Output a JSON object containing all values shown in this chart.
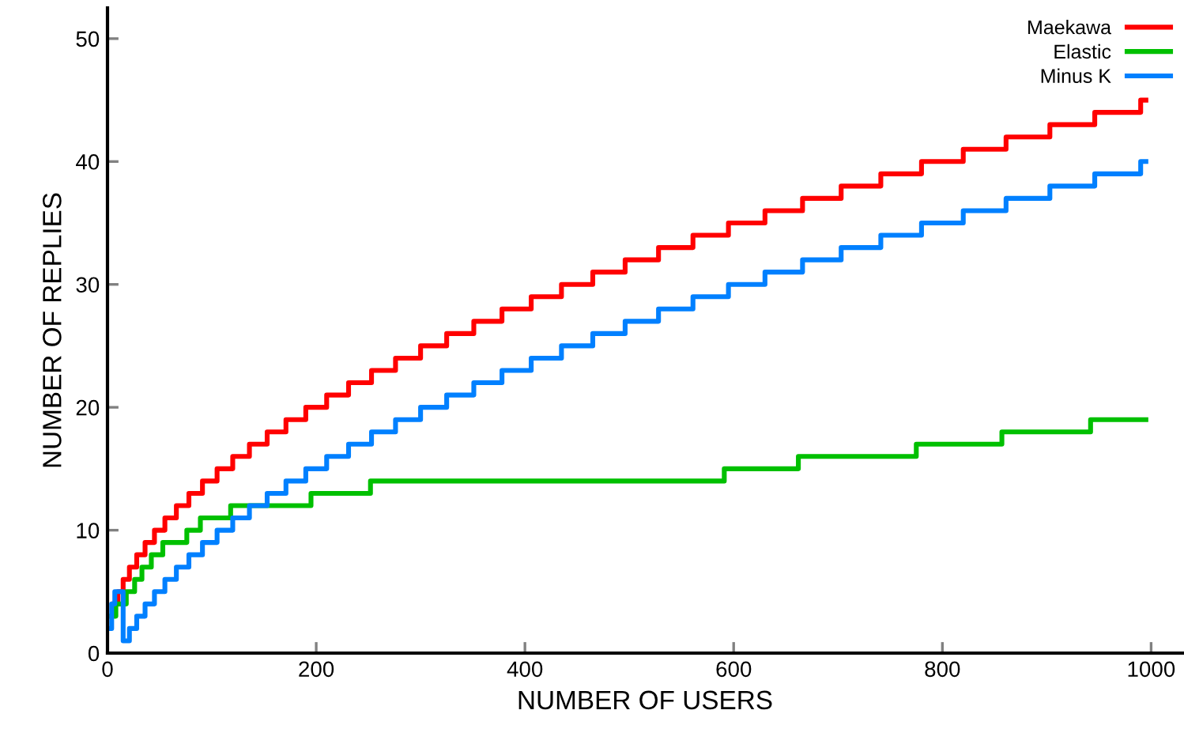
{
  "chart_data": {
    "type": "step",
    "xlabel": "NUMBER OF USERS",
    "ylabel": "NUMBER OF REPLIES",
    "xlim": [
      0,
      1030
    ],
    "ylim": [
      0,
      52.5
    ],
    "xticks": [
      0,
      200,
      400,
      600,
      800,
      1000
    ],
    "yticks": [
      0,
      10,
      20,
      30,
      40,
      50
    ],
    "grid": false,
    "legend": "top right",
    "line_style": "solid",
    "marker": "none",
    "series": [
      {
        "name": "Maekawa",
        "color": "#ff0000",
        "x": [
          6,
          10,
          15,
          21,
          28,
          36,
          45,
          55,
          66,
          78,
          91,
          105,
          120,
          136,
          153,
          171,
          190,
          210,
          231,
          253,
          276,
          300,
          325,
          351,
          378,
          406,
          435,
          465,
          496,
          528,
          561,
          595,
          630,
          666,
          703,
          741,
          780,
          820,
          861,
          903,
          946,
          990,
          995
        ],
        "values": [
          4,
          5,
          6,
          7,
          8,
          9,
          10,
          11,
          12,
          13,
          14,
          15,
          16,
          17,
          18,
          19,
          20,
          21,
          22,
          23,
          24,
          25,
          26,
          27,
          28,
          29,
          30,
          31,
          32,
          33,
          34,
          35,
          36,
          37,
          38,
          39,
          40,
          41,
          42,
          43,
          44,
          45,
          45
        ]
      },
      {
        "name": "Elastic",
        "color": "#00c000",
        "x": [
          4,
          8,
          18,
          26,
          33,
          42,
          53,
          76,
          89,
          118,
          195,
          252,
          591,
          662,
          775,
          857,
          942,
          995
        ],
        "values": [
          3,
          4,
          5,
          6,
          7,
          8,
          9,
          10,
          11,
          12,
          13,
          14,
          15,
          16,
          17,
          18,
          19,
          19
        ]
      },
      {
        "name": "Minus K",
        "color": "#0080ff",
        "x": [
          1,
          4,
          7,
          15,
          21,
          28,
          36,
          45,
          55,
          66,
          78,
          91,
          105,
          120,
          136,
          153,
          171,
          190,
          210,
          231,
          253,
          276,
          300,
          325,
          351,
          378,
          406,
          435,
          465,
          496,
          528,
          561,
          595,
          630,
          666,
          703,
          741,
          780,
          820,
          861,
          903,
          946,
          990,
          995
        ],
        "values": [
          2,
          4,
          5,
          1,
          2,
          3,
          4,
          5,
          6,
          7,
          8,
          9,
          10,
          11,
          12,
          13,
          14,
          15,
          16,
          17,
          18,
          19,
          20,
          21,
          22,
          23,
          24,
          25,
          26,
          27,
          28,
          29,
          30,
          31,
          32,
          33,
          34,
          35,
          36,
          37,
          38,
          39,
          40,
          40
        ]
      }
    ]
  }
}
